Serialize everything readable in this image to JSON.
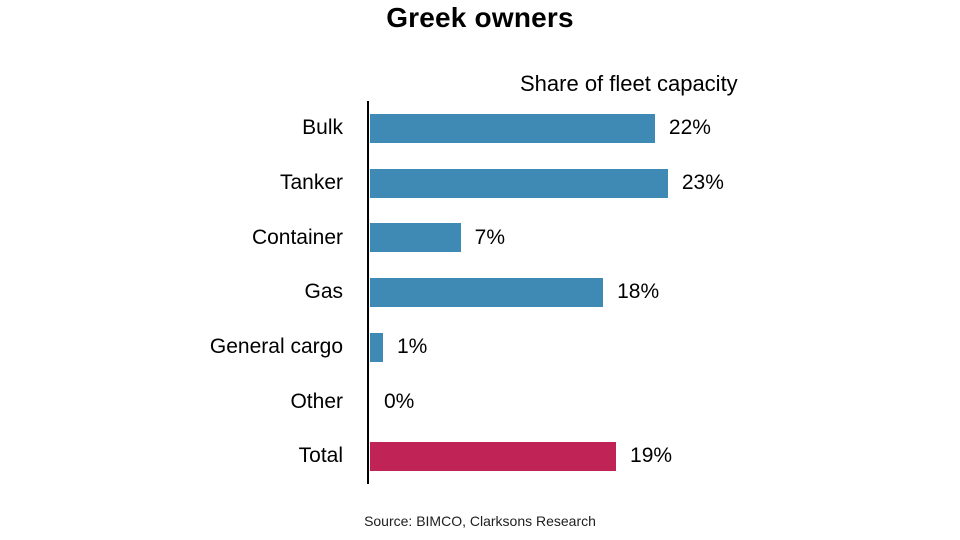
{
  "slide": {
    "title": "Greek owners",
    "subtitle": "Share of fleet capacity",
    "source": "Source: BIMCO, Clarksons Research"
  },
  "colors": {
    "bar_blue": "#3E8AB5",
    "bar_total": "#C02456",
    "axis": "#000000"
  },
  "chart_data": {
    "type": "bar",
    "orientation": "horizontal",
    "title": "Greek owners",
    "subtitle": "Share of fleet capacity",
    "unit": "percent",
    "categories": [
      "Bulk",
      "Tanker",
      "Container",
      "Gas",
      "General cargo",
      "Other",
      "Total"
    ],
    "values": [
      22,
      23,
      7,
      18,
      1,
      0,
      19
    ],
    "value_labels": [
      "22%",
      "23%",
      "7%",
      "18%",
      "1%",
      "0%",
      "19%"
    ],
    "bar_colors": [
      "#3E8AB5",
      "#3E8AB5",
      "#3E8AB5",
      "#3E8AB5",
      "#3E8AB5",
      "#3E8AB5",
      "#C02456"
    ],
    "xlim": [
      0,
      25
    ],
    "grid": false,
    "legend": false,
    "source": "Source: BIMCO, Clarksons Research"
  }
}
